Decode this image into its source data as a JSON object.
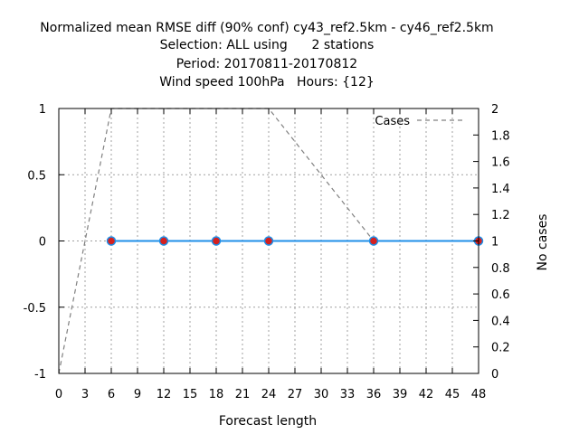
{
  "chart_data": {
    "type": "line",
    "title_lines": [
      "Normalized mean RMSE diff (90% conf) cy43_ref2.5km - cy46_ref2.5km",
      "Selection: ALL using      2 stations",
      "Period: 20170811-20170812",
      "Wind speed 100hPa   Hours: {12}"
    ],
    "xlabel": "Forecast length",
    "ylabel": "",
    "y2label": "No cases",
    "xlim": [
      0,
      48
    ],
    "ylim": [
      -1,
      1
    ],
    "y2lim": [
      0,
      2
    ],
    "xticks": [
      "0",
      "3",
      "6",
      "9",
      "12",
      "15",
      "18",
      "21",
      "24",
      "27",
      "30",
      "33",
      "36",
      "39",
      "42",
      "45",
      "48"
    ],
    "yticks": [
      "-1",
      "-0.5",
      "0",
      "0.5",
      "1"
    ],
    "y2ticks": [
      "0",
      "0.2",
      "0.4",
      "0.6",
      "0.8",
      "1",
      "1.2",
      "1.4",
      "1.6",
      "1.8",
      "2"
    ],
    "grid": true,
    "legend_position": "top-right",
    "series": [
      {
        "role": "diff",
        "axis": "left",
        "color": "#1f8fe8",
        "marker_color": "#d42020",
        "x": [
          6,
          12,
          18,
          24,
          36,
          48
        ],
        "y": [
          0,
          0,
          0,
          0,
          0,
          0
        ]
      },
      {
        "name": "Cases",
        "axis": "right",
        "color": "#808080",
        "dashed": true,
        "x": [
          0,
          6,
          12,
          18,
          24,
          36,
          48
        ],
        "y": [
          0,
          2,
          2,
          2,
          2,
          1,
          1
        ]
      }
    ]
  }
}
